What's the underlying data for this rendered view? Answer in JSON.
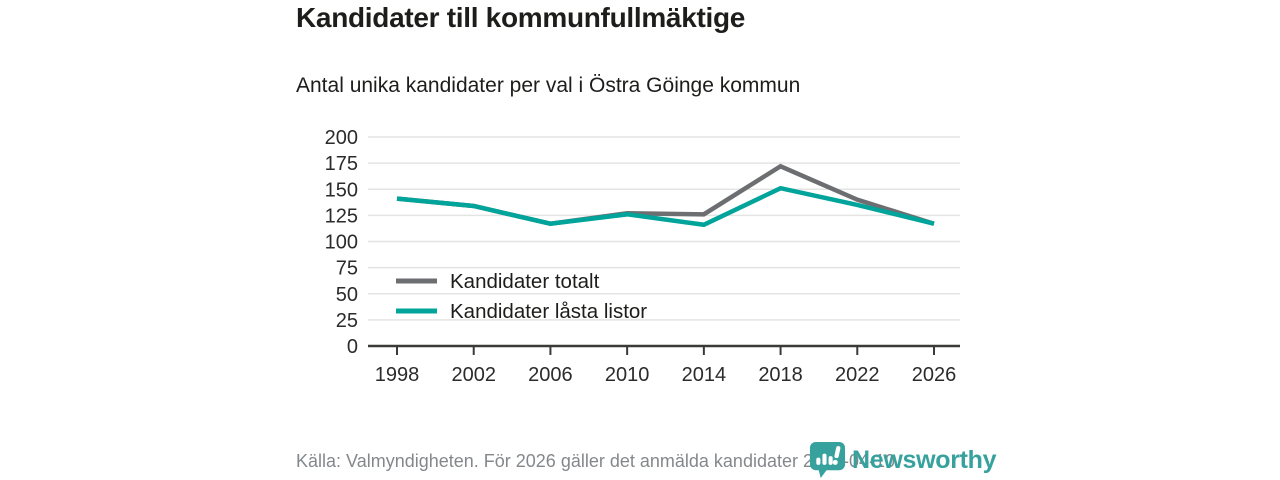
{
  "header": {
    "title": "Kandidater till kommunfullmäktige",
    "subtitle": "Antal unika kandidater per val i Östra Göinge kommun"
  },
  "chart_data": {
    "type": "line",
    "x": [
      1998,
      2002,
      2006,
      2010,
      2014,
      2018,
      2022,
      2026
    ],
    "series": [
      {
        "name": "Kandidater totalt",
        "color": "#6d6e71",
        "values": [
          141,
          134,
          117,
          127,
          126,
          172,
          140,
          117
        ]
      },
      {
        "name": "Kandidater låsta listor",
        "color": "#00a49b",
        "values": [
          141,
          134,
          117,
          126,
          116,
          151,
          135,
          117
        ]
      }
    ],
    "ylim": [
      0,
      200
    ],
    "ytick_step": 25,
    "grid": true,
    "legend_position": "inside-left-middle",
    "colors": {
      "gridline": "#e4e4e4",
      "axis": "#3a3a39",
      "tick_label": "#2b2b2b",
      "legend_label": "#1d1d1b"
    }
  },
  "footer": {
    "source": "Källa: Valmyndigheten. För 2026 gäller det anmälda kandidater 2026-04-10."
  },
  "branding": {
    "name": "Newsworthy",
    "color": "#37a29d",
    "icon": "speech-bubble-bar-chart-icon"
  }
}
